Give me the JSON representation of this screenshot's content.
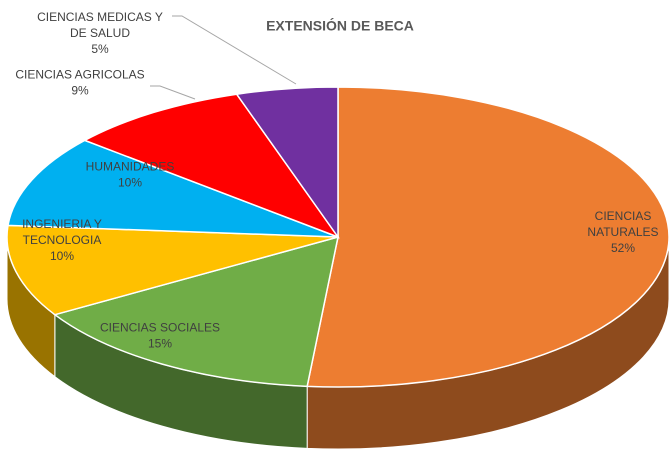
{
  "chart_data": {
    "type": "pie3d",
    "title": "EXTENSIÓN DE BECA",
    "categories": [
      "CIENCIAS NATURALES",
      "CIENCIAS SOCIALES",
      "INGENIERIA Y TECNOLOGIA",
      "HUMANIDADES",
      "CIENCIAS AGRICOLAS",
      "CIENCIAS MEDICAS Y DE SALUD"
    ],
    "values": [
      52,
      15,
      10,
      10,
      9,
      5
    ],
    "value_labels": [
      "52%",
      "15%",
      "10%",
      "10%",
      "9%",
      "5%"
    ],
    "colors": [
      "#ED7D31",
      "#70AD47",
      "#FFC000",
      "#00B0F0",
      "#FF0000",
      "#7030A0"
    ]
  }
}
